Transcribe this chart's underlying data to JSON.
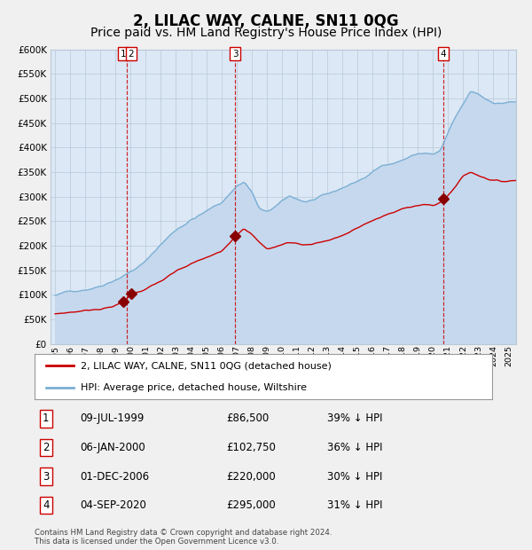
{
  "title": "2, LILAC WAY, CALNE, SN11 0QG",
  "subtitle": "Price paid vs. HM Land Registry's House Price Index (HPI)",
  "title_fontsize": 12,
  "subtitle_fontsize": 10,
  "bg_color": "#f0f0f0",
  "plot_bg_color": "#dce8f5",
  "grid_color": "#b8c8d8",
  "transactions": [
    {
      "date_num": 1999.52,
      "price": 86500,
      "label": "1"
    },
    {
      "date_num": 2000.02,
      "price": 102750,
      "label": "2"
    },
    {
      "date_num": 2006.92,
      "price": 220000,
      "label": "3"
    },
    {
      "date_num": 2020.67,
      "price": 295000,
      "label": "4"
    }
  ],
  "vlines": [
    {
      "x": 1999.77,
      "labels": [
        "1",
        "2"
      ]
    },
    {
      "x": 2006.92,
      "labels": [
        "3"
      ]
    },
    {
      "x": 2020.67,
      "labels": [
        "4"
      ]
    }
  ],
  "table_rows": [
    [
      "1",
      "09-JUL-1999",
      "£86,500",
      "39% ↓ HPI"
    ],
    [
      "2",
      "06-JAN-2000",
      "£102,750",
      "36% ↓ HPI"
    ],
    [
      "3",
      "01-DEC-2006",
      "£220,000",
      "30% ↓ HPI"
    ],
    [
      "4",
      "04-SEP-2020",
      "£295,000",
      "31% ↓ HPI"
    ]
  ],
  "legend_house": "2, LILAC WAY, CALNE, SN11 0QG (detached house)",
  "legend_hpi": "HPI: Average price, detached house, Wiltshire",
  "footer": "Contains HM Land Registry data © Crown copyright and database right 2024.\nThis data is licensed under the Open Government Licence v3.0.",
  "ylim": [
    0,
    600000
  ],
  "yticks": [
    0,
    50000,
    100000,
    150000,
    200000,
    250000,
    300000,
    350000,
    400000,
    450000,
    500000,
    550000,
    600000
  ],
  "xlim_start": 1994.7,
  "xlim_end": 2025.5,
  "red_color": "#cc0000",
  "blue_color": "#7bafd4",
  "blue_fill_color": "#c5d8ee",
  "marker_color": "#880000"
}
